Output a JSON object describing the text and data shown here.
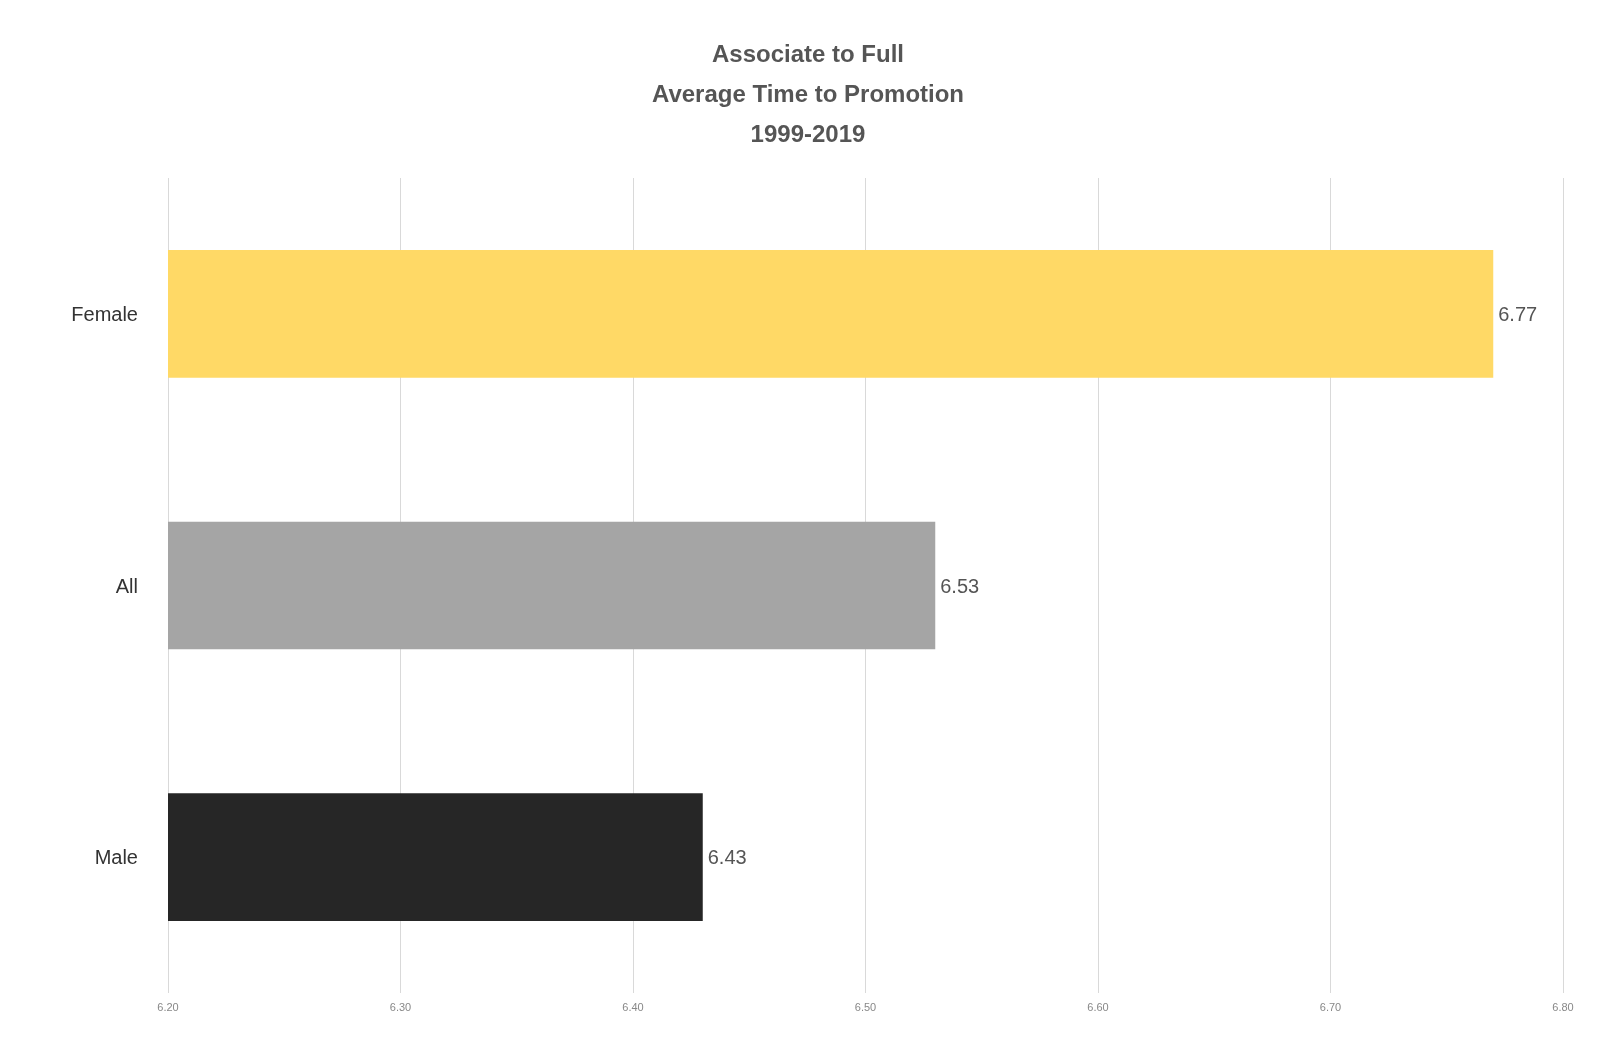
{
  "chart_data": {
    "type": "bar",
    "orientation": "horizontal",
    "title": "Associate to Full\nAverage Time to Promotion\n1999-2019",
    "categories": [
      "Female",
      "All",
      "Male"
    ],
    "values": [
      6.77,
      6.53,
      6.43
    ],
    "colors": [
      "#ffd966",
      "#a5a5a5",
      "#262626"
    ],
    "data_labels": true,
    "xlim": [
      6.2,
      6.8
    ],
    "xticks": [
      {
        "value": 6.2,
        "label": "6.20"
      },
      {
        "value": 6.3,
        "label": "6.30"
      },
      {
        "value": 6.4,
        "label": "6.40"
      },
      {
        "value": 6.5,
        "label": "6.50"
      },
      {
        "value": 6.6,
        "label": "6.60"
      },
      {
        "value": 6.7,
        "label": "6.70"
      },
      {
        "value": 6.8,
        "label": "6.80"
      }
    ],
    "grid": "x"
  }
}
